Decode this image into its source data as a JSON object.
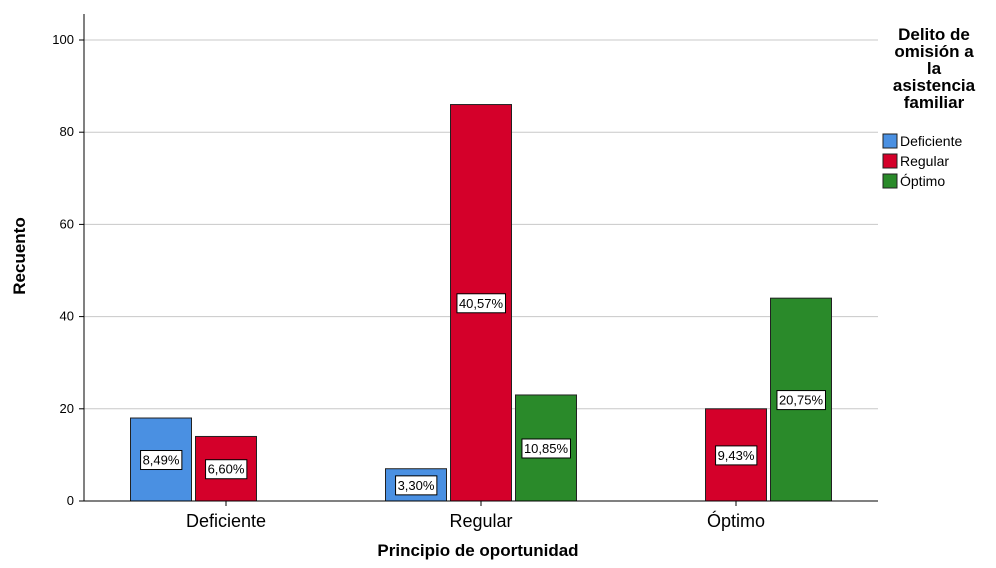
{
  "chart_data": {
    "type": "bar",
    "categories": [
      "Deficiente",
      "Regular",
      "Óptimo"
    ],
    "series": [
      {
        "name": "Deficiente",
        "color": "#4a90e2",
        "values": [
          18,
          7,
          null
        ],
        "labels": [
          "8,49%",
          "3,30%",
          ""
        ]
      },
      {
        "name": "Regular",
        "color": "#d4002a",
        "values": [
          14,
          86,
          20
        ],
        "labels": [
          "6,60%",
          "40,57%",
          "9,43%"
        ]
      },
      {
        "name": "Óptimo",
        "color": "#2a8a2a",
        "values": [
          null,
          23,
          44
        ],
        "labels": [
          "",
          "10,85%",
          "20,75%"
        ]
      }
    ],
    "xlabel": "Principio de oportunidad",
    "ylabel": "Recuento",
    "ylim": [
      0,
      105
    ],
    "yticks": [
      0,
      20,
      40,
      60,
      80,
      100
    ],
    "grid": true,
    "legend": {
      "title_lines": [
        "Delito de",
        "omisión a",
        "la",
        "asistencia",
        "familiar"
      ],
      "position": "right"
    }
  }
}
